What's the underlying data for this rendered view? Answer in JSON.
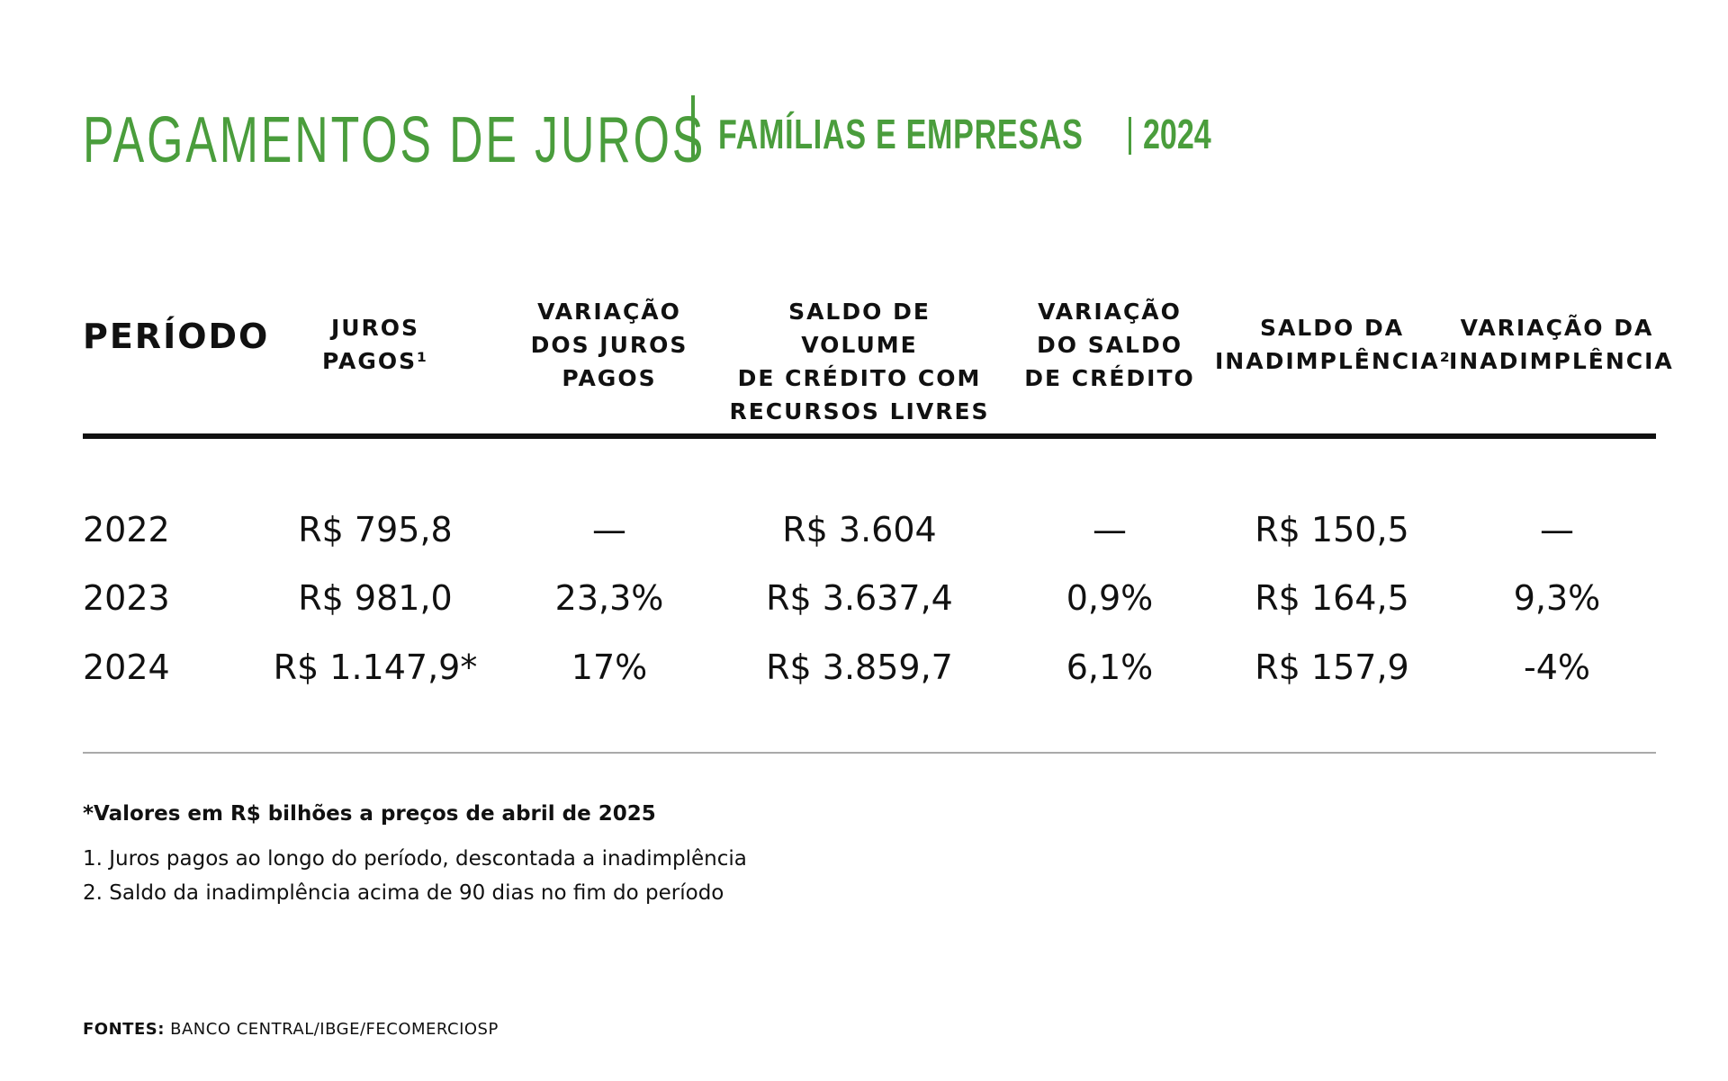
{
  "title": {
    "main": "PAGAMENTOS DE JUROS",
    "subtitle": "FAMÍLIAS E EMPRESAS",
    "year": "2024"
  },
  "chart_data": {
    "type": "table",
    "columns": [
      "PERÍODO",
      "JUROS\nPAGOS¹",
      "VARIAÇÃO\nDOS JUROS\nPAGOS",
      "SALDO DE VOLUME\nDE CRÉDITO COM\nRECURSOS LIVRES",
      "VARIAÇÃO\nDO SALDO\nDE CRÉDITO",
      "SALDO DA\nINADIMPLÊNCIA²",
      "VARIAÇÃO DA\nINADIMPLÊNCIA"
    ],
    "rows": [
      [
        "2022",
        "R$ 795,8",
        "—",
        "R$ 3.604",
        "—",
        "R$ 150,5",
        "—"
      ],
      [
        "2023",
        "R$ 981,0",
        "23,3%",
        "R$ 3.637,4",
        "0,9%",
        "R$ 164,5",
        "9,3%"
      ],
      [
        "2024",
        "R$ 1.147,9*",
        "17%",
        "R$ 3.859,7",
        "6,1%",
        "R$ 157,9",
        "-4%"
      ]
    ]
  },
  "notes": {
    "unit_note": "*Valores em R$ bilhões a preços de abril de 2025",
    "note1": "1. Juros pagos ao longo do período, descontada a inadimplência",
    "note2": "2. Saldo da inadimplência acima de 90 dias no fim do período"
  },
  "source": {
    "label": "FONTES:",
    "text": " BANCO CENTRAL/IBGE/FECOMERCIOSP"
  },
  "colors": {
    "title_green": "#4a9d3c",
    "text": "#111111",
    "rule_thin": "#aaaaaa"
  }
}
